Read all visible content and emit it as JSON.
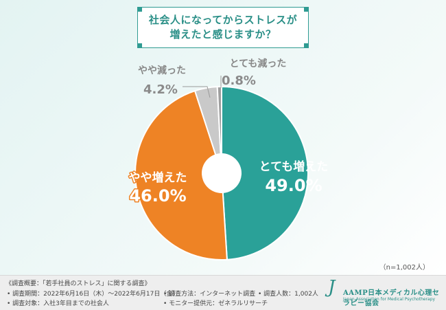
{
  "title": {
    "line1": "社会人になってからストレスが",
    "line2": "増えたと感じますか？"
  },
  "chart_data": {
    "type": "pie",
    "variant": "donut",
    "slices": [
      {
        "label": "とても増えた",
        "value": 49.0,
        "display": "49.0%",
        "color": "#2aa198"
      },
      {
        "label": "やや増えた",
        "value": 46.0,
        "display": "46.0%",
        "color": "#ee8325"
      },
      {
        "label": "やや減った",
        "value": 4.2,
        "display": "4.2%",
        "color": "#c9c9c9"
      },
      {
        "label": "とても減った",
        "value": 0.8,
        "display": "0.8%",
        "color": "#9e9e9e"
      }
    ]
  },
  "sample_note": "（n=1,002人）",
  "footer": {
    "heading": "《調査概要：「若手社員のストレス」に関する調査》",
    "period": "• 調査期間：2022年6月16日（木）～2022年6月17日（金）",
    "method": "• 調査方法：インターネット調査",
    "count": "• 調査人数：1,002人",
    "target": "• 調査対象：入社3年目までの社会人",
    "provider": "• モニター提供元：ゼネラルリサーチ"
  },
  "logo": {
    "mark": "J",
    "name": "AAMP日本メディカル心理セラピー協会",
    "sub": "Japan Association for Medical Psychotherapy"
  }
}
